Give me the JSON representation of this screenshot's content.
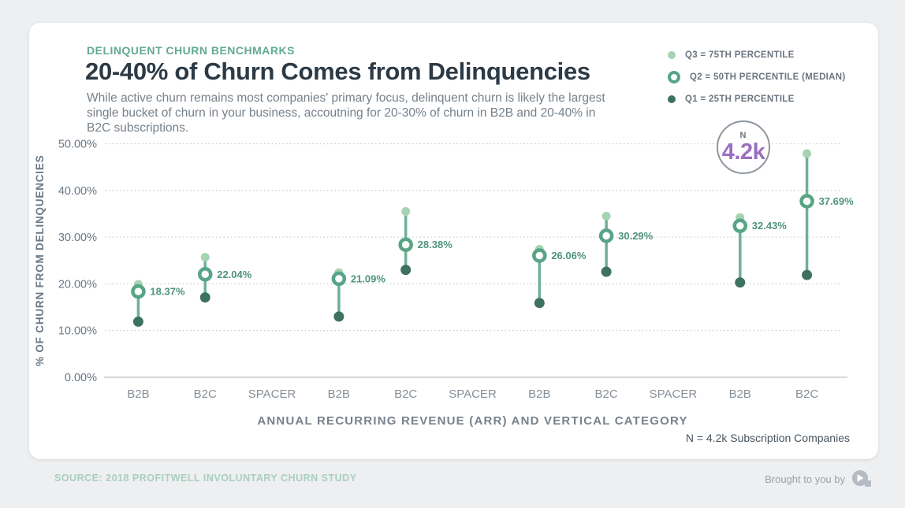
{
  "header": {
    "eyebrow": "DELINQUENT CHURN BENCHMARKS",
    "title": "20-40% of Churn Comes from Delinquencies",
    "subtitle": "While active churn remains most companies' primary focus, delinquent churn is likely the largest single bucket of churn in your business, accoutning for 20-30% of churn in B2B and 20-40% in B2C subscriptions."
  },
  "legend": {
    "items": [
      {
        "marker": "q3-dot",
        "label": "Q3 = 75TH PERCENTILE"
      },
      {
        "marker": "q2-ring",
        "label": "Q2 = 50TH PERCENTILE (MEDIAN)"
      },
      {
        "marker": "q1-dot",
        "label": "Q1 = 25TH PERCENTILE"
      }
    ]
  },
  "annotation_badge": {
    "top_label": "N",
    "value": "4.2k"
  },
  "chart_footer": {
    "n_note": "N = 4.2k Subscription Companies"
  },
  "page_footer": {
    "source": "SOURCE: 2018 PROFITWELL INVOLUNTARY CHURN STUDY",
    "attribution": "Brought to you by",
    "logo": "profitwell-logo"
  },
  "colors": {
    "q3": "#a6d3b2",
    "q2": "#58a487",
    "q1": "#3e7260",
    "stem": "#6fb093",
    "value-label": "#4f947a",
    "eyebrow": "#62aa90",
    "title": "#2c3a46",
    "subtitle": "#76818b",
    "purple": "#9a6fc2",
    "grid": "#c8ccd0",
    "axis-line": "#d6d9dc",
    "tick-label": "#6b7884",
    "cat-label": "#868f98",
    "axis-title": "#78828c",
    "source-green": "#a9cfc0",
    "gray-text": "#99a2aa",
    "note-text": "#4a5560",
    "badge-border": "#8d969f",
    "badge-n": "#6d7680",
    "card-bg": "#ffffff",
    "page-bg": "#edeff0"
  },
  "chart_data": {
    "type": "scatter",
    "subtype": "lollipop-range (Q1/Q2/Q3 percentile dot plot per category)",
    "title": "20-40% of Churn Comes from Delinquencies",
    "categories": [
      "B2B",
      "B2C",
      "SPACER",
      "B2B",
      "B2C",
      "SPACER",
      "B2B",
      "B2C",
      "SPACER",
      "B2B",
      "B2C"
    ],
    "series": [
      {
        "name": "Q3 = 75th percentile",
        "values": [
          19.9,
          25.7,
          null,
          22.4,
          35.5,
          null,
          27.4,
          34.5,
          null,
          34.2,
          47.9
        ]
      },
      {
        "name": "Q2 = 50th percentile (median)",
        "values": [
          18.37,
          22.04,
          null,
          21.09,
          28.38,
          null,
          26.06,
          30.29,
          null,
          32.43,
          37.69
        ]
      },
      {
        "name": "Q1 = 25th percentile",
        "values": [
          11.9,
          17.1,
          null,
          13.0,
          23.0,
          null,
          15.9,
          22.6,
          null,
          20.3,
          21.9
        ]
      }
    ],
    "median_labels": [
      "18.37%",
      "22.04%",
      null,
      "21.09%",
      "28.38%",
      null,
      "26.06%",
      "30.29%",
      null,
      "32.43%",
      "37.69%"
    ],
    "yticks": [
      "0.00%",
      "10.00%",
      "20.00%",
      "30.00%",
      "40.00%",
      "50.00%"
    ],
    "ylim": [
      0,
      50
    ],
    "ylabel": "% OF CHURN FROM DELINQUENCIES",
    "xlabel": "ANNUAL RECURRING REVENUE (ARR) AND VERTICAL CATEGORY",
    "grid": "horizontal dotted",
    "legend_position": "top-right"
  }
}
